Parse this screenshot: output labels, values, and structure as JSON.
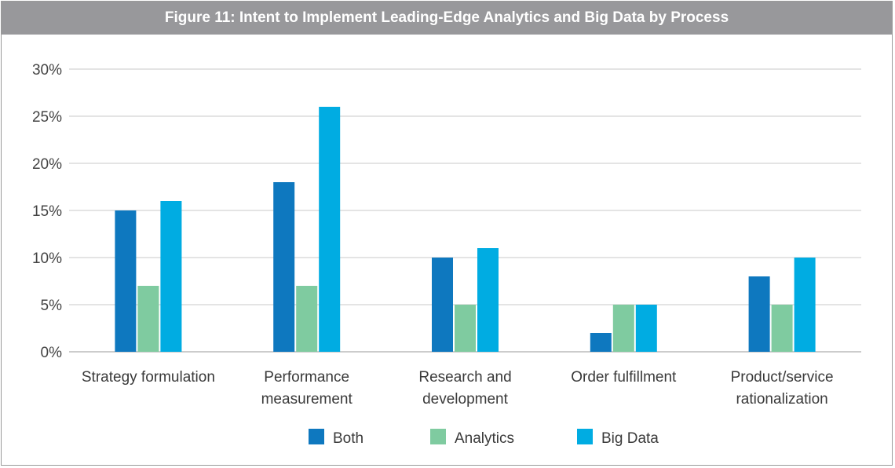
{
  "chart_data": {
    "type": "bar",
    "title": "Figure 11: Intent to Implement Leading-Edge Analytics and Big Data by Process",
    "categories": [
      [
        "Strategy formulation"
      ],
      [
        "Performance",
        "measurement"
      ],
      [
        "Research and",
        "development"
      ],
      [
        "Order fulfillment"
      ],
      [
        "Product/service",
        "rationalization"
      ]
    ],
    "series": [
      {
        "name": "Both",
        "color": "#0e78bf",
        "values": [
          15,
          18,
          10,
          2,
          8
        ]
      },
      {
        "name": "Analytics",
        "color": "#7fcba0",
        "values": [
          7,
          7,
          5,
          5,
          5
        ]
      },
      {
        "name": "Big Data",
        "color": "#00ace2",
        "values": [
          16,
          26,
          11,
          5,
          10
        ]
      }
    ],
    "ylim": [
      0,
      30
    ],
    "yticks": [
      "0%",
      "5%",
      "10%",
      "15%",
      "20%",
      "25%",
      "30%"
    ],
    "ytick_values": [
      0,
      5,
      10,
      15,
      20,
      25,
      30
    ],
    "grid": true,
    "legend": "bottom-center"
  }
}
